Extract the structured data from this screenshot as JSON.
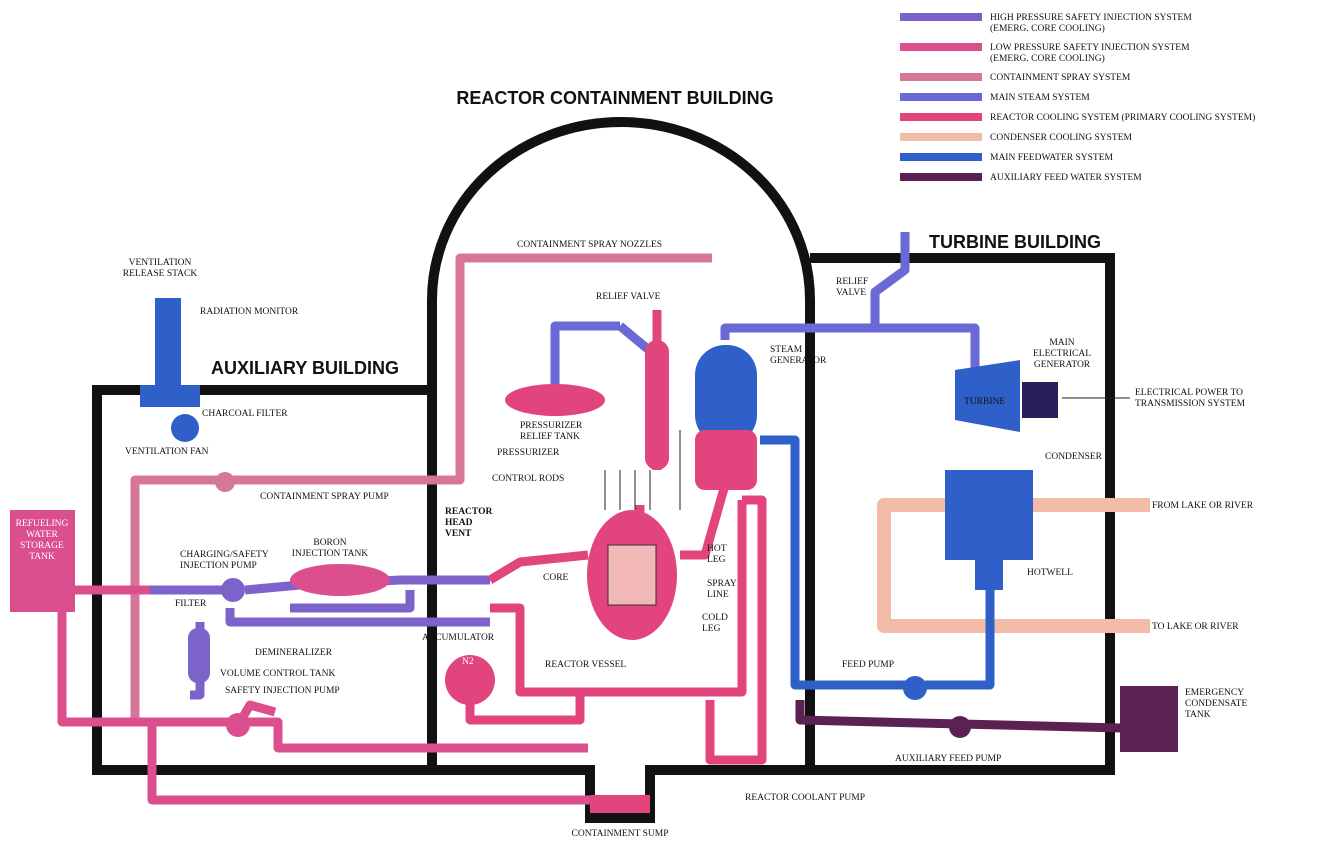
{
  "legend": [
    {
      "label": [
        "HIGH PRESSURE SAFETY INJECTION SYSTEM",
        "(EMERG. CORE COOLING)"
      ],
      "color": "#7b63c9"
    },
    {
      "label": [
        "LOW PRESSURE SAFETY INJECTION SYSTEM",
        "(EMERG. CORE COOLING)"
      ],
      "color": "#dc4f8e"
    },
    {
      "label": [
        "CONTAINMENT SPRAY SYSTEM"
      ],
      "color": "#d6779a"
    },
    {
      "label": [
        "MAIN STEAM SYSTEM"
      ],
      "color": "#6a6ad6"
    },
    {
      "label": [
        "REACTOR COOLING SYSTEM   (PRIMARY COOLING SYSTEM)"
      ],
      "color": "#e2457e"
    },
    {
      "label": [
        "CONDENSER COOLING SYSTEM"
      ],
      "color": "#f3bca8"
    },
    {
      "label": [
        "MAIN FEEDWATER SYSTEM"
      ],
      "color": "#2f5fc8"
    },
    {
      "label": [
        "AUXILIARY FEED WATER SYSTEM"
      ],
      "color": "#5a2152"
    }
  ],
  "buildings": {
    "containment": "REACTOR CONTAINMENT BUILDING",
    "auxiliary": "AUXILIARY BUILDING",
    "turbine": "TURBINE BUILDING"
  },
  "labels": {
    "ventilation_release_stack": [
      "VENTILATION",
      "RELEASE STACK"
    ],
    "radiation_monitor": [
      "RADIATION MONITOR"
    ],
    "charcoal_filter": [
      "CHARCOAL FILTER"
    ],
    "ventilation_fan": [
      "VENTILATION FAN"
    ],
    "containment_spray_pump": [
      "CONTAINMENT SPRAY PUMP"
    ],
    "containment_spray_nozzles": [
      "CONTAINMENT SPRAY NOZZLES"
    ],
    "relief_valve_pressurizer": [
      "RELIEF VALVE"
    ],
    "pressurizer_relief_tank": [
      "PRESSURIZER",
      "RELIEF TANK"
    ],
    "pressurizer": [
      "PRESSURIZER"
    ],
    "control_rods": [
      "CONTROL RODS"
    ],
    "reactor_head_vent": [
      "REACTOR",
      "HEAD",
      "VENT"
    ],
    "steam_generator": [
      "STEAM",
      "GENERATOR"
    ],
    "hot_leg": [
      "HOT",
      "LEG"
    ],
    "spray_line": [
      "SPRAY",
      "LINE"
    ],
    "core": [
      "CORE"
    ],
    "cold_leg": [
      "COLD",
      "LEG"
    ],
    "reactor_vessel": [
      "REACTOR VESSEL"
    ],
    "refueling_water_storage_tank": [
      "REFUELING",
      "WATER",
      "STORAGE",
      "TANK"
    ],
    "charging_safety_injection_pump": [
      "CHARGING/SAFETY",
      "INJECTION PUMP"
    ],
    "boron_injection_tank": [
      "BORON",
      "INJECTION TANK"
    ],
    "filter": [
      "FILTER"
    ],
    "demineralizer": [
      "DEMINERALIZER"
    ],
    "accumulator": [
      "ACCUMULATOR"
    ],
    "volume_control_tank": [
      "VOLUME CONTROL TANK"
    ],
    "safety_injection_pump": [
      "SAFETY INJECTION PUMP"
    ],
    "n2": [
      "N2"
    ],
    "relief_valve_turbine": [
      "RELIEF",
      "VALVE"
    ],
    "main_electrical_generator": [
      "MAIN",
      "ELECTRICAL",
      "GENERATOR"
    ],
    "turbine": [
      "TURBINE"
    ],
    "electrical_power": [
      "ELECTRICAL POWER TO",
      "TRANSMISSION SYSTEM"
    ],
    "condenser": [
      "CONDENSER"
    ],
    "from_lake_or_river": [
      "FROM LAKE OR RIVER"
    ],
    "hotwell": [
      "HOTWELL"
    ],
    "to_lake_or_river": [
      "TO LAKE OR RIVER"
    ],
    "feed_pump": [
      "FEED PUMP"
    ],
    "emergency_condensate_tank": [
      "EMERGENCY",
      "CONDENSATE",
      "TANK"
    ],
    "auxiliary_feed_pump": [
      "AUXILIARY FEED PUMP"
    ],
    "reactor_coolant_pump": [
      "REACTOR COOLANT PUMP"
    ],
    "containment_sump": [
      "CONTAINMENT SUMP"
    ]
  }
}
